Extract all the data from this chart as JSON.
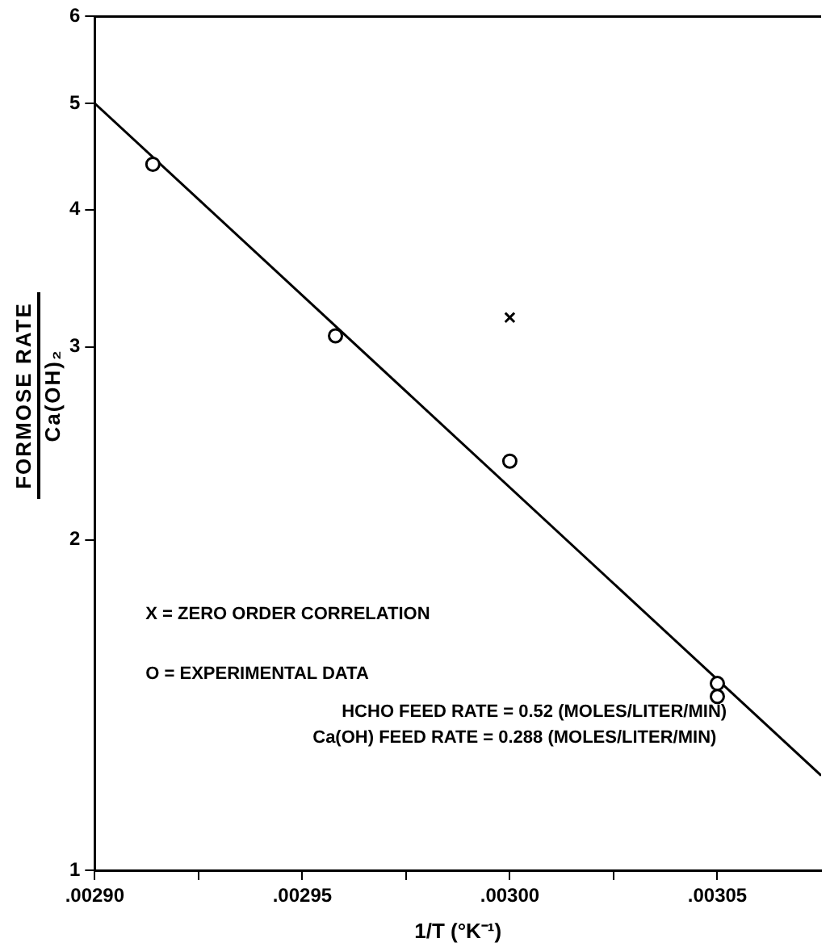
{
  "chart_data": {
    "type": "scatter",
    "xlabel": "1/T (°K⁻¹)",
    "ylabel": "FORMOSE RATE\nCa(OH)₂",
    "xlim": [
      0.0029,
      0.003075
    ],
    "xticks": [
      {
        "value": 0.0029,
        "label": ".00290"
      },
      {
        "value": 0.002925,
        "label": null
      },
      {
        "value": 0.00295,
        "label": ".00295"
      },
      {
        "value": 0.002975,
        "label": null
      },
      {
        "value": 0.003,
        "label": ".00300"
      },
      {
        "value": 0.003025,
        "label": null
      },
      {
        "value": 0.00305,
        "label": ".00305"
      }
    ],
    "ylim": [
      1,
      6
    ],
    "yticks": [
      1,
      2,
      3,
      4,
      5,
      6
    ],
    "log": "y",
    "grid": false,
    "series": [
      {
        "type": "scatter",
        "marker": "circle",
        "color": "#000000",
        "x": [
          0.002914,
          0.002958,
          0.003,
          0.00305,
          0.00305
        ],
        "values": [
          4.4,
          3.07,
          2.36,
          1.48,
          1.44
        ]
      },
      {
        "type": "scatter",
        "marker": "cross",
        "color": "#000000",
        "x": [
          0.003
        ],
        "values": [
          3.19
        ]
      },
      {
        "type": "line",
        "marker": "none",
        "color": "#000000",
        "x": [
          0.0029,
          0.003075
        ],
        "values": [
          5.0,
          1.22
        ]
      }
    ],
    "annotations": [
      "X = ZERO ORDER CORRELATION",
      "O = EXPERIMENTAL DATA",
      "HCHO FEED RATE = 0.52 (MOLES/LITER/MIN)",
      "Ca(OH) FEED RATE = 0.288 (MOLES/LITER/MIN)"
    ]
  }
}
